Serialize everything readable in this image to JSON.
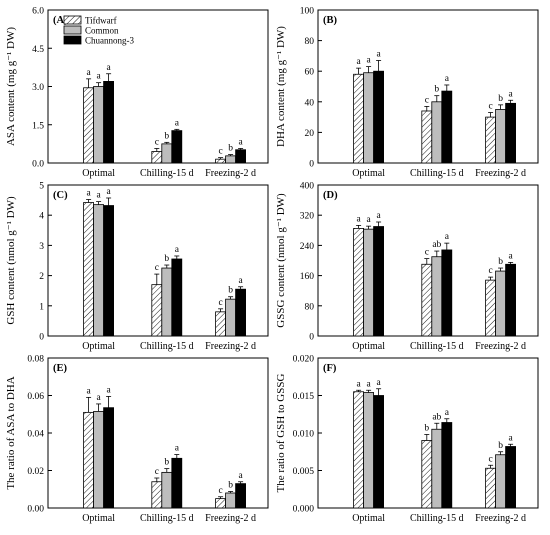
{
  "legend": {
    "entries": [
      {
        "name": "Tifdwarf",
        "pattern": "hatch"
      },
      {
        "name": "Common",
        "color": "#bdbdbd"
      },
      {
        "name": "Chuannong-3",
        "color": "#000000"
      }
    ],
    "placement": "top-left"
  },
  "chart_data": [
    {
      "panel": "(A)",
      "type": "bar",
      "ylabel": "ASA content (mg g⁻¹ DW)",
      "categories": [
        "Optimal",
        "Chilling-15 d",
        "Freezing-2 d"
      ],
      "ylim": [
        0,
        6
      ],
      "yticks": [
        "0.0",
        "1.5",
        "3.0",
        "4.5",
        "6.0"
      ],
      "yticks_values": [
        0,
        1.5,
        3,
        4.5,
        6
      ],
      "series": [
        {
          "name": "Tifdwarf",
          "values": [
            2.95,
            0.45,
            0.15
          ],
          "errors": [
            0.35,
            0.12,
            0.06
          ],
          "letters": [
            "a",
            "c",
            "c"
          ]
        },
        {
          "name": "Common",
          "values": [
            3.0,
            0.75,
            0.28
          ],
          "errors": [
            0.15,
            0.06,
            0.05
          ],
          "letters": [
            "a",
            "b",
            "b"
          ]
        },
        {
          "name": "Chuannong-3",
          "values": [
            3.2,
            1.27,
            0.52
          ],
          "errors": [
            0.3,
            0.05,
            0.05
          ],
          "letters": [
            "a",
            "a",
            "a"
          ]
        }
      ]
    },
    {
      "panel": "(B)",
      "type": "bar",
      "ylabel": "DHA content (mg g⁻¹ DW)",
      "categories": [
        "Optimal",
        "Chilling-15 d",
        "Freezing-2 d"
      ],
      "ylim": [
        0,
        100
      ],
      "yticks": [
        "0",
        "20",
        "40",
        "60",
        "80",
        "100"
      ],
      "yticks_values": [
        0,
        20,
        40,
        60,
        80,
        100
      ],
      "series": [
        {
          "name": "Tifdwarf",
          "values": [
            58,
            34,
            30
          ],
          "errors": [
            4,
            3,
            3
          ],
          "letters": [
            "a",
            "c",
            "c"
          ]
        },
        {
          "name": "Common",
          "values": [
            59,
            40,
            35
          ],
          "errors": [
            4,
            4,
            3
          ],
          "letters": [
            "a",
            "b",
            "b"
          ]
        },
        {
          "name": "Chuannong-3",
          "values": [
            60,
            47,
            39
          ],
          "errors": [
            7,
            4,
            2
          ],
          "letters": [
            "a",
            "a",
            "a"
          ]
        }
      ]
    },
    {
      "panel": "(C)",
      "type": "bar",
      "ylabel": "GSH content (nmol g⁻¹ DW)",
      "categories": [
        "Optimal",
        "Chilling-15 d",
        "Freezing-2 d"
      ],
      "ylim": [
        0,
        5
      ],
      "yticks": [
        "0",
        "1",
        "2",
        "3",
        "4",
        "5"
      ],
      "yticks_values": [
        0,
        1,
        2,
        3,
        4,
        5
      ],
      "series": [
        {
          "name": "Tifdwarf",
          "values": [
            4.42,
            1.7,
            0.8
          ],
          "errors": [
            0.1,
            0.35,
            0.1
          ],
          "letters": [
            "a",
            "c",
            "c"
          ]
        },
        {
          "name": "Common",
          "values": [
            4.35,
            2.25,
            1.22
          ],
          "errors": [
            0.1,
            0.1,
            0.08
          ],
          "letters": [
            "a",
            "b",
            "b"
          ]
        },
        {
          "name": "Chuannong-3",
          "values": [
            4.32,
            2.55,
            1.55
          ],
          "errors": [
            0.25,
            0.1,
            0.08
          ],
          "letters": [
            "a",
            "a",
            "a"
          ]
        }
      ]
    },
    {
      "panel": "(D)",
      "type": "bar",
      "ylabel": "GSSG content (nmol g⁻¹ DW)",
      "categories": [
        "Optimal",
        "Chilling-15 d",
        "Freezing-2 d"
      ],
      "ylim": [
        0,
        400
      ],
      "yticks": [
        "0",
        "80",
        "160",
        "240",
        "320",
        "400"
      ],
      "yticks_values": [
        0,
        80,
        160,
        240,
        320,
        400
      ],
      "series": [
        {
          "name": "Tifdwarf",
          "values": [
            285,
            190,
            148
          ],
          "errors": [
            8,
            15,
            8
          ],
          "letters": [
            "a",
            "c",
            "c"
          ]
        },
        {
          "name": "Common",
          "values": [
            283,
            210,
            172
          ],
          "errors": [
            8,
            15,
            8
          ],
          "letters": [
            "a",
            "ab",
            "b"
          ]
        },
        {
          "name": "Chuannong-3",
          "values": [
            290,
            228,
            190
          ],
          "errors": [
            12,
            18,
            5
          ],
          "letters": [
            "a",
            "a",
            "a"
          ]
        }
      ]
    },
    {
      "panel": "(E)",
      "type": "bar",
      "ylabel": "The ratio of ASA to DHA",
      "categories": [
        "Optimal",
        "Chilling-15 d",
        "Freezing-2 d"
      ],
      "ylim": [
        0,
        0.08
      ],
      "yticks": [
        "0.00",
        "0.02",
        "0.04",
        "0.06",
        "0.08"
      ],
      "yticks_values": [
        0,
        0.02,
        0.04,
        0.06,
        0.08
      ],
      "series": [
        {
          "name": "Tifdwarf",
          "values": [
            0.051,
            0.014,
            0.005
          ],
          "errors": [
            0.008,
            0.002,
            0.001
          ],
          "letters": [
            "a",
            "c",
            "c"
          ]
        },
        {
          "name": "Common",
          "values": [
            0.0515,
            0.019,
            0.008
          ],
          "errors": [
            0.004,
            0.002,
            0.0008
          ],
          "letters": [
            "a",
            "b",
            "b"
          ]
        },
        {
          "name": "Chuannong-3",
          "values": [
            0.0535,
            0.0265,
            0.013
          ],
          "errors": [
            0.006,
            0.002,
            0.001
          ],
          "letters": [
            "a",
            "a",
            "a"
          ]
        }
      ]
    },
    {
      "panel": "(F)",
      "type": "bar",
      "ylabel": "The ratio of GSH to GSSG",
      "categories": [
        "Optimal",
        "Chilling-15 d",
        "Freezing-2 d"
      ],
      "ylim": [
        0,
        0.02
      ],
      "yticks": [
        "0.000",
        "0.005",
        "0.010",
        "0.015",
        "0.020"
      ],
      "yticks_values": [
        0,
        0.005,
        0.01,
        0.015,
        0.02
      ],
      "series": [
        {
          "name": "Tifdwarf",
          "values": [
            0.0155,
            0.009,
            0.0053
          ],
          "errors": [
            0.0002,
            0.0008,
            0.0004
          ],
          "letters": [
            "a",
            "b",
            "c"
          ]
        },
        {
          "name": "Common",
          "values": [
            0.0154,
            0.0105,
            0.0071
          ],
          "errors": [
            0.0003,
            0.0008,
            0.0004
          ],
          "letters": [
            "a",
            "ab",
            "b"
          ]
        },
        {
          "name": "Chuannong-3",
          "values": [
            0.015,
            0.0114,
            0.0082
          ],
          "errors": [
            0.0009,
            0.0005,
            0.0003
          ],
          "letters": [
            "a",
            "a",
            "a"
          ]
        }
      ]
    }
  ]
}
